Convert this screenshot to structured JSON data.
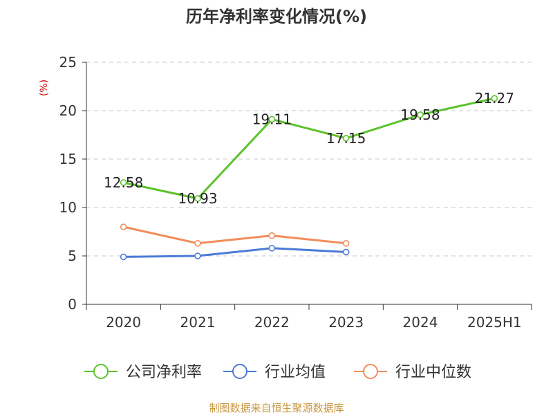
{
  "chart_data": {
    "type": "line",
    "title": "历年净利率变化情况(%)",
    "ylabel": "(%)",
    "categories": [
      "2020",
      "2021",
      "2022",
      "2023",
      "2024",
      "2025H1"
    ],
    "ylim": [
      0,
      25
    ],
    "yticks": [
      "0",
      "5",
      "10",
      "15",
      "20",
      "25"
    ],
    "grid": true,
    "legend_position": "bottom",
    "series": [
      {
        "name": "公司净利率",
        "color": "#5bc22c",
        "values": [
          12.58,
          10.93,
          19.11,
          17.15,
          19.58,
          21.27
        ],
        "labels": [
          "12.58",
          "10.93",
          "19.11",
          "17.15",
          "19.58",
          "21.27"
        ]
      },
      {
        "name": "行业均值",
        "color": "#4a7bd8",
        "values": [
          4.9,
          5.0,
          5.8,
          5.4,
          null,
          null
        ]
      },
      {
        "name": "行业中位数",
        "color": "#f28c5a",
        "values": [
          8.0,
          6.3,
          7.1,
          6.3,
          null,
          null
        ]
      }
    ],
    "source": "制图数据来自恒生聚源数据库"
  }
}
